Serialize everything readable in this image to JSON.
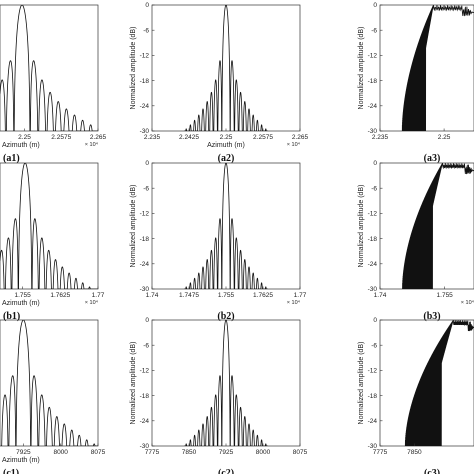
{
  "chart_data": [
    {
      "id": "a1",
      "type": "line",
      "panel_label": "(a1)",
      "xlabel": "Azimuth (m)",
      "ylabel": "",
      "x_multiplier": "× 10⁴",
      "x_ticks": [
        "2.25",
        "2.2575",
        "2.265"
      ],
      "y_ticks": [],
      "xlim": [
        2.245,
        2.265
      ],
      "ylim": [
        -30,
        0
      ],
      "shape": "sinc",
      "center": 2.2495,
      "lobe_spacing": 0.00165,
      "x_start": 2.245
    },
    {
      "id": "a2",
      "type": "line",
      "panel_label": "(a2)",
      "xlabel": "Azimuth (m)",
      "ylabel": "Normalized amplitude (dB)",
      "x_multiplier": "× 10⁴",
      "x_ticks": [
        "2.235",
        "2.2425",
        "2.25",
        "2.2575",
        "2.265"
      ],
      "y_ticks": [
        "0",
        "-6",
        "-12",
        "-18",
        "-24",
        "-30"
      ],
      "xlim": [
        2.235,
        2.265
      ],
      "ylim": [
        -30,
        0
      ],
      "shape": "sinc",
      "center": 2.25,
      "lobe_spacing": 0.00085,
      "x_start": 2.2415,
      "x_end": 2.2585
    },
    {
      "id": "a3",
      "type": "line",
      "panel_label": "(a3)",
      "xlabel": "",
      "ylabel": "Normalized amplitude (dB)",
      "x_multiplier": "",
      "x_ticks": [
        "2.235",
        "2.25"
      ],
      "y_ticks": [
        "0",
        "-6",
        "-12",
        "-18",
        "-24",
        "-30"
      ],
      "xlim": [
        2.235,
        2.257
      ],
      "ylim": [
        -30,
        0
      ],
      "shape": "edge",
      "edge_start": 2.2402,
      "edge_top": 2.2475,
      "top_end": 2.257
    },
    {
      "id": "b1",
      "type": "line",
      "panel_label": "(b1)",
      "xlabel": "Azimuth (m)",
      "ylabel": "",
      "x_multiplier": "× 10⁴",
      "x_ticks": [
        "1.755",
        "1.7625",
        "1.77"
      ],
      "y_ticks": [],
      "xlim": [
        1.7505,
        1.77
      ],
      "ylim": [
        -30,
        0
      ],
      "shape": "sinc",
      "center": 1.7555,
      "lobe_spacing": 0.00135,
      "x_start": 1.7505
    },
    {
      "id": "b2",
      "type": "line",
      "panel_label": "(b2)",
      "xlabel": "",
      "ylabel": "Normalized amplitude (dB)",
      "x_multiplier": "× 10⁴",
      "x_ticks": [
        "1.74",
        "1.7475",
        "1.755",
        "1.7625",
        "1.77"
      ],
      "y_ticks": [
        "0",
        "-6",
        "-12",
        "-18",
        "-24",
        "-30"
      ],
      "xlim": [
        1.74,
        1.77
      ],
      "ylim": [
        -30,
        0
      ],
      "shape": "sinc",
      "center": 1.755,
      "lobe_spacing": 0.00085,
      "x_start": 1.7465,
      "x_end": 1.7635
    },
    {
      "id": "b3",
      "type": "line",
      "panel_label": "(b3)",
      "xlabel": "",
      "ylabel": "Normalized amplitude (dB)",
      "x_multiplier": "× 10⁴",
      "x_ticks": [
        "1.74",
        "1.755"
      ],
      "y_ticks": [
        "0",
        "-6",
        "-12",
        "-18",
        "-24",
        "-30"
      ],
      "xlim": [
        1.74,
        1.7618
      ],
      "ylim": [
        -30,
        0
      ],
      "shape": "edge",
      "edge_start": 1.7452,
      "edge_top": 1.7545,
      "top_end": 1.7618
    },
    {
      "id": "c1",
      "type": "line",
      "panel_label": "(c1)",
      "xlabel": "Azimuth (m)",
      "ylabel": "",
      "x_multiplier": "",
      "x_ticks": [
        "7925",
        "8000",
        "8075"
      ],
      "y_ticks": [],
      "xlim": [
        7878,
        8075
      ],
      "ylim": [
        -30,
        0
      ],
      "shape": "sinc",
      "center": 7925,
      "lobe_spacing": 15,
      "x_start": 7880
    },
    {
      "id": "c2",
      "type": "line",
      "panel_label": "(c2)",
      "xlabel": "",
      "ylabel": "Normalized amplitude (dB)",
      "x_multiplier": "",
      "x_ticks": [
        "7775",
        "7850",
        "7925",
        "8000",
        "8075"
      ],
      "y_ticks": [
        "0",
        "-6",
        "-12",
        "-18",
        "-24",
        "-30"
      ],
      "xlim": [
        7775,
        8075
      ],
      "ylim": [
        -30,
        0
      ],
      "shape": "sinc",
      "center": 7925,
      "lobe_spacing": 8.5,
      "x_start": 7840,
      "x_end": 8010
    },
    {
      "id": "c3",
      "type": "line",
      "panel_label": "(c3)",
      "xlabel": "",
      "ylabel": "Normalized amplitude (dB)",
      "x_multiplier": "",
      "x_ticks": [
        "7775",
        "7850"
      ],
      "y_ticks": [
        "0",
        "-6",
        "-12",
        "-18",
        "-24",
        "-30"
      ],
      "xlim": [
        7775,
        7980
      ],
      "ylim": [
        -30,
        0
      ],
      "shape": "edge",
      "edge_start": 7830,
      "edge_top": 7935,
      "top_end": 7980
    }
  ]
}
